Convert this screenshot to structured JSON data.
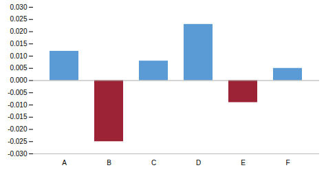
{
  "chart_data": {
    "type": "bar",
    "categories": [
      "A",
      "B",
      "C",
      "D",
      "E",
      "F"
    ],
    "values": [
      0.012,
      -0.025,
      0.008,
      0.023,
      -0.009,
      0.005
    ],
    "colors": [
      "#5b9bd5",
      "#9b2335",
      "#5b9bd5",
      "#5b9bd5",
      "#9b2335",
      "#5b9bd5"
    ],
    "ylim": [
      -0.03,
      0.03
    ],
    "yticks": [
      {
        "value": -0.03,
        "label": "-0.030"
      },
      -0.025,
      {
        "value": -0.02,
        "label": "-0.020"
      },
      -0.015,
      {
        "value": -0.01,
        "label": "-0.010"
      },
      -0.005,
      {
        "value": 0,
        "label": "0.000"
      },
      0.005,
      {
        "value": 0.01,
        "label": "0.010"
      },
      0.015,
      {
        "value": 0.02,
        "label": "0.020"
      },
      0.025,
      {
        "value": 0.03,
        "label": "0.030"
      }
    ],
    "grid": false
  }
}
